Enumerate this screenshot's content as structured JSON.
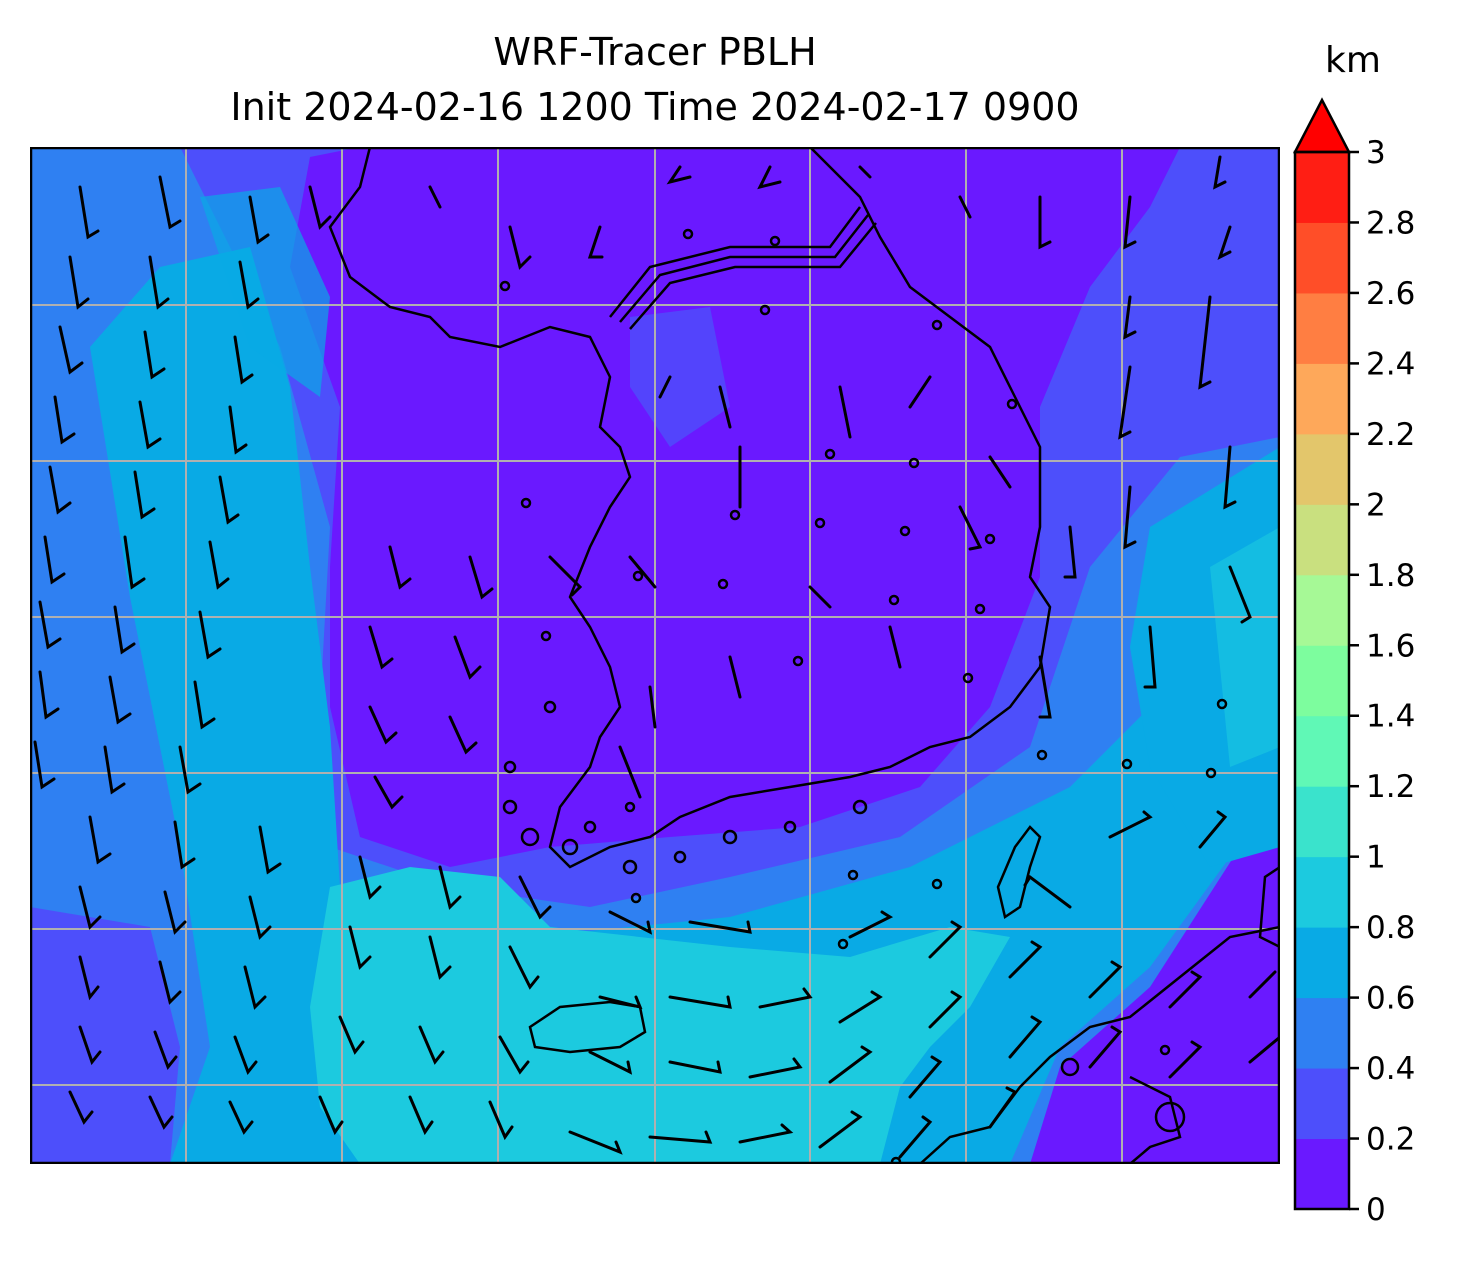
{
  "title": {
    "line1": "WRF-Tracer PBLH",
    "line2": "Init 2024-02-16 1200 Time 2024-02-17 0900"
  },
  "colorbar": {
    "unit": "km",
    "ticks": [
      "0",
      "0.2",
      "0.4",
      "0.6",
      "0.8",
      "1",
      "1.2",
      "1.4",
      "1.6",
      "1.8",
      "2",
      "2.2",
      "2.4",
      "2.6",
      "2.8",
      "3"
    ],
    "colors": [
      "#6a19ff",
      "#4d4ffb",
      "#2f80f2",
      "#09aae5",
      "#1ccadf",
      "#3ae3cc",
      "#60f8b6",
      "#7dfd9e",
      "#a6f996",
      "#c9e07f",
      "#e3c66b",
      "#fea85a",
      "#ff7e42",
      "#ff4e28",
      "#ff1e14",
      "#ff0000"
    ],
    "extend": "max"
  },
  "map": {
    "field": "PBLH",
    "gridlines": true,
    "wind_barbs": true,
    "coastlines": true
  }
}
